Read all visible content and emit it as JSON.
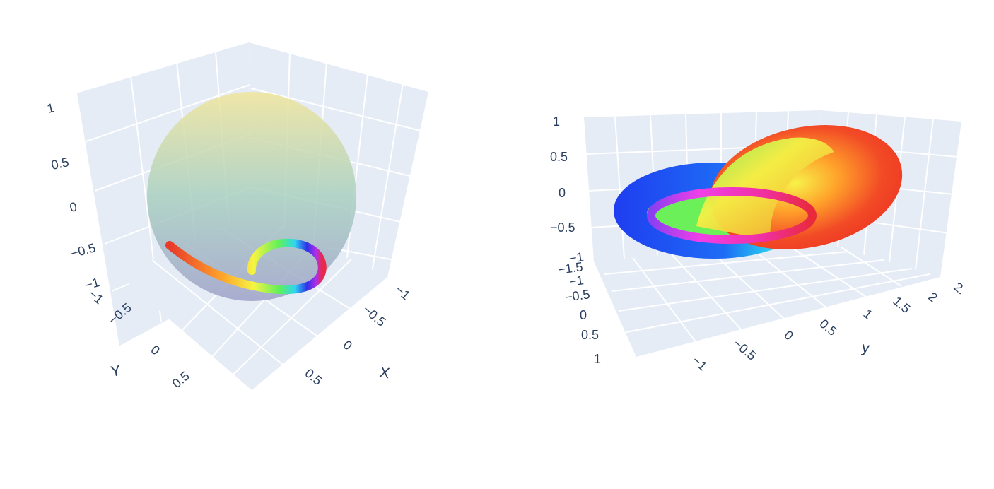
{
  "chart_data": [
    {
      "type": "surface3d",
      "surface": "sphere",
      "radius": 1,
      "curve": "spiral",
      "ranges": {
        "x": [
          -1,
          1
        ],
        "y": [
          -1,
          1
        ],
        "z": [
          -1,
          1
        ]
      },
      "axes": {
        "x": {
          "title": "X",
          "ticks": [
            "−1",
            "−0.5",
            "0",
            "0.5"
          ]
        },
        "y": {
          "title": "Y",
          "ticks": [
            "−1",
            "−0.5",
            "0",
            "0.5"
          ]
        },
        "z": {
          "title": "",
          "ticks": [
            "−1",
            "−0.5",
            "0",
            "0.5",
            "1"
          ]
        }
      },
      "grid": true,
      "colorscale": "rainbow",
      "sphere_colors": [
        "#f2e394",
        "#a8d3c3",
        "#9fa5c9"
      ]
    },
    {
      "type": "surface3d",
      "surface": "linked-tori",
      "ranges": {
        "x": [
          -1,
          1
        ],
        "y": [
          -1.5,
          2.5
        ],
        "z": [
          -1,
          1
        ]
      },
      "axes": {
        "x": {
          "title": "",
          "ticks": [
            "−1",
            "−0.5",
            "0",
            "0.5",
            "1",
            "1.5",
            "2",
            "2."
          ]
        },
        "y": {
          "title": "y",
          "ticks": [
            "−1.5",
            "−1",
            "−0.5",
            "0",
            "0.5",
            "1"
          ]
        },
        "z": {
          "title": "",
          "ticks": [
            "1",
            "0.5",
            "0",
            "−0.5",
            "−1"
          ]
        }
      },
      "grid": true,
      "colorscale": "rainbow"
    }
  ]
}
